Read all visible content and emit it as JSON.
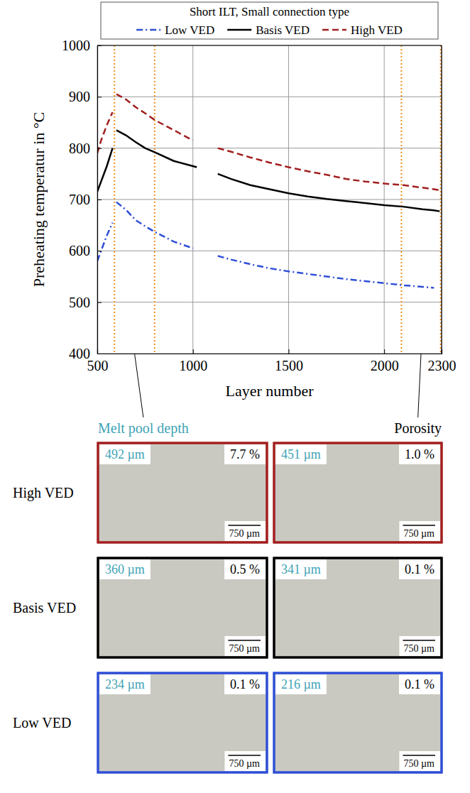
{
  "chart_data": {
    "type": "line",
    "title": "Short ILT, Small connection type",
    "x_label": "Layer number",
    "y_label": "Preheating temperatur in °C",
    "x": [
      500,
      520,
      550,
      580,
      590,
      600,
      650,
      700,
      750,
      800,
      900,
      1000,
      1020,
      1070,
      1130,
      1200,
      1300,
      1400,
      1500,
      1600,
      1700,
      1800,
      1900,
      2000,
      2100,
      2200,
      2260,
      2290
    ],
    "series": [
      {
        "name": "Low VED",
        "color": "#2f4fd6",
        "line_style": "dashdot",
        "values": [
          580,
          600,
          630,
          655,
          null,
          695,
          680,
          660,
          648,
          637,
          618,
          605,
          null,
          null,
          590,
          583,
          574,
          566,
          560,
          555,
          550,
          545,
          541,
          537,
          533,
          530,
          528,
          null
        ]
      },
      {
        "name": "Basis VED",
        "color": "#000000",
        "line_style": "solid",
        "values": [
          715,
          735,
          765,
          800,
          null,
          835,
          825,
          812,
          800,
          792,
          775,
          765,
          763,
          null,
          750,
          740,
          728,
          720,
          712,
          706,
          701,
          697,
          693,
          689,
          686,
          681,
          679,
          677
        ]
      },
      {
        "name": "High VED",
        "color": "#a31f1f",
        "line_style": "dashed",
        "values": [
          790,
          815,
          845,
          870,
          null,
          905,
          895,
          880,
          868,
          855,
          835,
          815,
          null,
          null,
          800,
          793,
          782,
          772,
          763,
          755,
          748,
          740,
          735,
          731,
          728,
          723,
          720,
          718
        ]
      }
    ],
    "vlines": [
      590,
      800,
      2090,
      2295
    ],
    "xlim": [
      500,
      2300
    ],
    "xticks": [
      500,
      1000,
      1500,
      2000,
      2300
    ],
    "ylim": [
      400,
      1000
    ],
    "yticks": [
      400,
      500,
      600,
      700,
      800,
      900,
      1000
    ],
    "grid": true,
    "legend": "top"
  },
  "micrographs": {
    "column_titles": [
      "Melt pool depth",
      "Porosity"
    ],
    "rows": [
      {
        "label": "High VED",
        "color": "#a31f1f",
        "cells": [
          {
            "depth": "492 µm",
            "porosity": "7.7 %",
            "scale_bar": "750 µm"
          },
          {
            "depth": "451 µm",
            "porosity": "1.0 %",
            "scale_bar": "750 µm"
          }
        ]
      },
      {
        "label": "Basis VED",
        "color": "#000000",
        "cells": [
          {
            "depth": "360 µm",
            "porosity": "0.5 %",
            "scale_bar": "750 µm"
          },
          {
            "depth": "341 µm",
            "porosity": "0.1 %",
            "scale_bar": "750 µm"
          }
        ]
      },
      {
        "label": "Low VED",
        "color": "#2f4fd6",
        "cells": [
          {
            "depth": "234 µm",
            "porosity": "0.1 %",
            "scale_bar": "750 µm"
          },
          {
            "depth": "216 µm",
            "porosity": "0.1 %",
            "scale_bar": "750 µm"
          }
        ]
      }
    ]
  }
}
